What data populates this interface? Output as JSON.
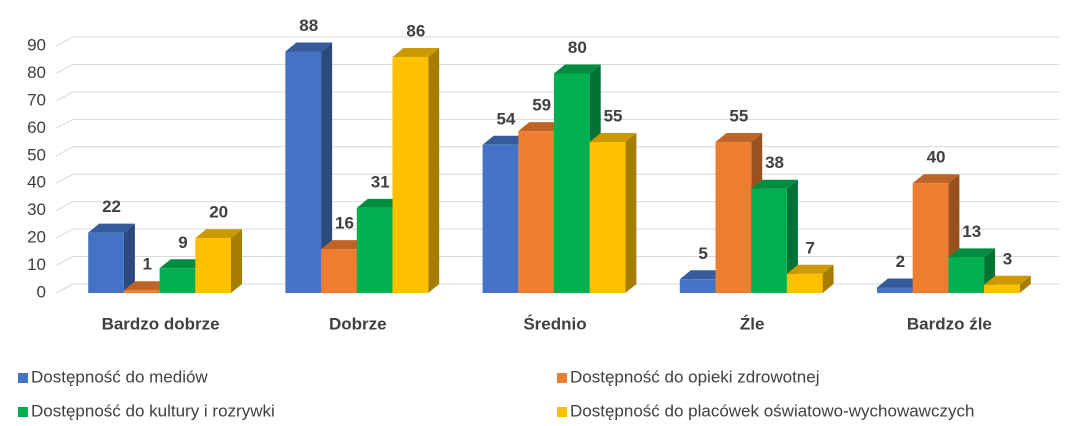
{
  "chart_data": {
    "type": "bar3d",
    "categories": [
      "Bardzo dobrze",
      "Dobrze",
      "Średnio",
      "Źle",
      "Bardzo źle"
    ],
    "series": [
      {
        "name": "Dostępność do mediów",
        "color": "#4472c4",
        "values": [
          22,
          88,
          54,
          5,
          2
        ]
      },
      {
        "name": "Dostępność do opieki zdrowotnej",
        "color": "#ed7d31",
        "values": [
          1,
          16,
          59,
          55,
          40
        ]
      },
      {
        "name": "Dostępność do kultury i rozrywki",
        "color": "#00b050",
        "values": [
          9,
          31,
          80,
          38,
          13
        ]
      },
      {
        "name": "Dostępność do placówek oświatowo-wychowawczych",
        "color": "#ffc000",
        "values": [
          20,
          86,
          55,
          7,
          3
        ]
      }
    ],
    "ylim": [
      0,
      90
    ],
    "yticks": [
      0,
      10,
      20,
      30,
      40,
      50,
      60,
      70,
      80,
      90
    ],
    "grid": true,
    "legend": "bottom"
  }
}
